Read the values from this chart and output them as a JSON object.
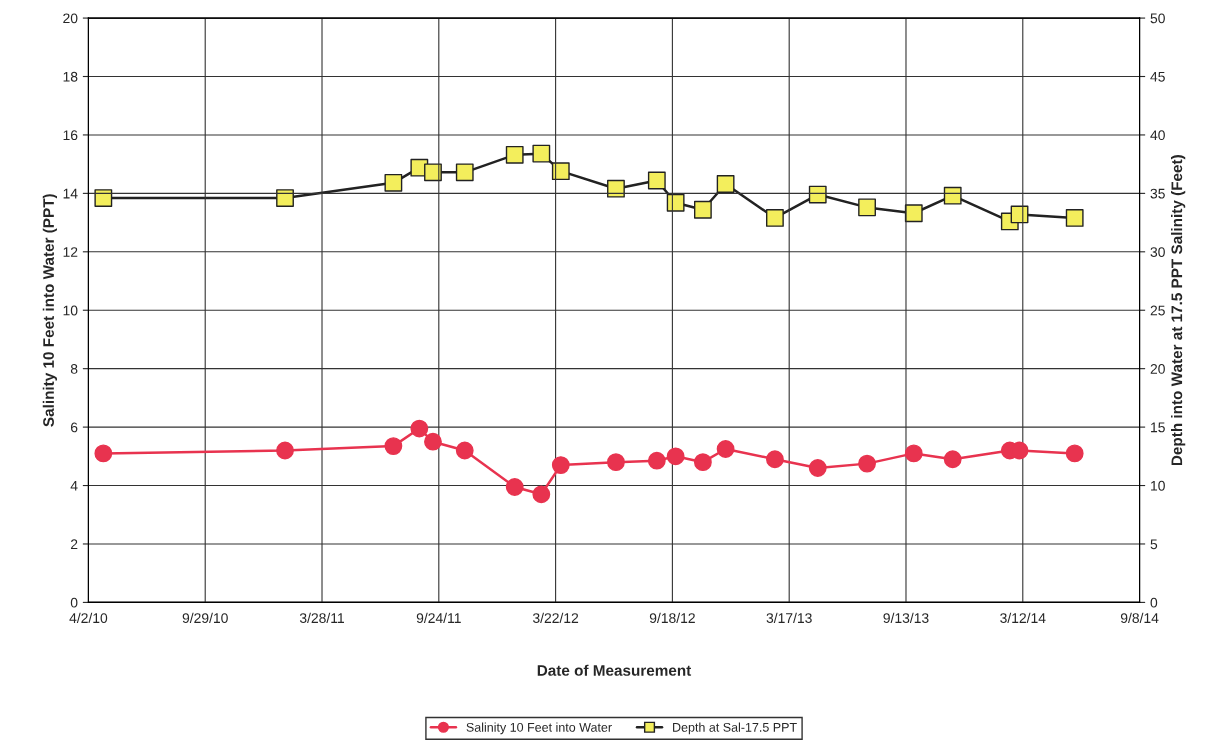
{
  "chart_data": {
    "type": "line",
    "xlabel": "Date of Measurement",
    "ylabel": "Salinity 10 Feet into Water (PPT)",
    "y2label": "Depth into Water at 17.5 PPT Salinity (Feet)",
    "x": [
      "2010-04-25",
      "2011-01-30",
      "2011-07-16",
      "2011-08-25",
      "2011-09-15",
      "2011-11-03",
      "2012-01-19",
      "2012-02-29",
      "2012-03-30",
      "2012-06-23",
      "2012-08-25",
      "2012-09-23",
      "2012-11-04",
      "2012-12-09",
      "2013-02-23",
      "2013-04-30",
      "2013-07-15",
      "2013-09-25",
      "2013-11-24",
      "2014-02-20",
      "2014-03-07",
      "2014-05-31"
    ],
    "series": [
      {
        "name": "Salinity 10 Feet into Water",
        "color": "#e8334f",
        "marker": "circle",
        "values": [
          5.1,
          5.2,
          5.35,
          5.95,
          5.5,
          5.2,
          3.95,
          3.7,
          4.7,
          4.8,
          4.85,
          5.0,
          4.8,
          5.25,
          4.9,
          4.6,
          4.75,
          5.1,
          4.9,
          5.2,
          5.2,
          5.1
        ]
      },
      {
        "name": "Depth at Sal-17.5 PPT",
        "color": "#222222",
        "colors": [
          "#f3ee5c",
          "#f3ee5c",
          "#f3ee5c",
          "#f3ee5c",
          "#f3ee5c",
          "#f3ee5c",
          "#f3ee5c",
          "#f3ee5c",
          "#f3ee5c",
          "#f3ee5c",
          "#f3ee5c",
          "#f3ee5c",
          "#f3ee5c",
          "#f3ee5c",
          "#f3ee5c",
          "#f3ee5c",
          "#f3ee5c",
          "#f3ee5c",
          "#f3ee5c",
          "#f3ee5c",
          "#f3ee5c",
          "#f3ee5c"
        ],
        "marker": "square",
        "axis": "y2",
        "values": [
          34.6,
          34.6,
          35.9,
          37.2,
          36.8,
          36.8,
          38.3,
          38.4,
          36.9,
          35.4,
          36.1,
          34.2,
          33.6,
          35.8,
          32.9,
          34.9,
          33.8,
          33.3,
          34.8,
          32.6,
          33.2,
          32.9
        ]
      }
    ],
    "xlim": [
      "2010-04-02",
      "2014-09-08"
    ],
    "xticks": [
      {
        "value": "2010-04-02",
        "label": "4/2/10"
      },
      {
        "value": "2010-09-29",
        "label": "9/29/10"
      },
      {
        "value": "2011-03-28",
        "label": "3/28/11"
      },
      {
        "value": "2011-09-24",
        "label": "9/24/11"
      },
      {
        "value": "2012-03-22",
        "label": "3/22/12"
      },
      {
        "value": "2012-09-18",
        "label": "9/18/12"
      },
      {
        "value": "2013-03-17",
        "label": "3/17/13"
      },
      {
        "value": "2013-09-13",
        "label": "9/13/13"
      },
      {
        "value": "2014-03-12",
        "label": "3/12/14"
      },
      {
        "value": "2014-09-08",
        "label": "9/8/14"
      }
    ],
    "ylim": [
      0,
      20
    ],
    "yticks": [
      0,
      2,
      4,
      6,
      8,
      10,
      12,
      14,
      16,
      18,
      20
    ],
    "y2lim": [
      0,
      50
    ],
    "y2ticks": [
      0,
      5,
      10,
      15,
      20,
      25,
      30,
      35,
      40,
      45,
      50
    ],
    "grid": true,
    "legend": "bottom",
    "line_style": "solid"
  }
}
